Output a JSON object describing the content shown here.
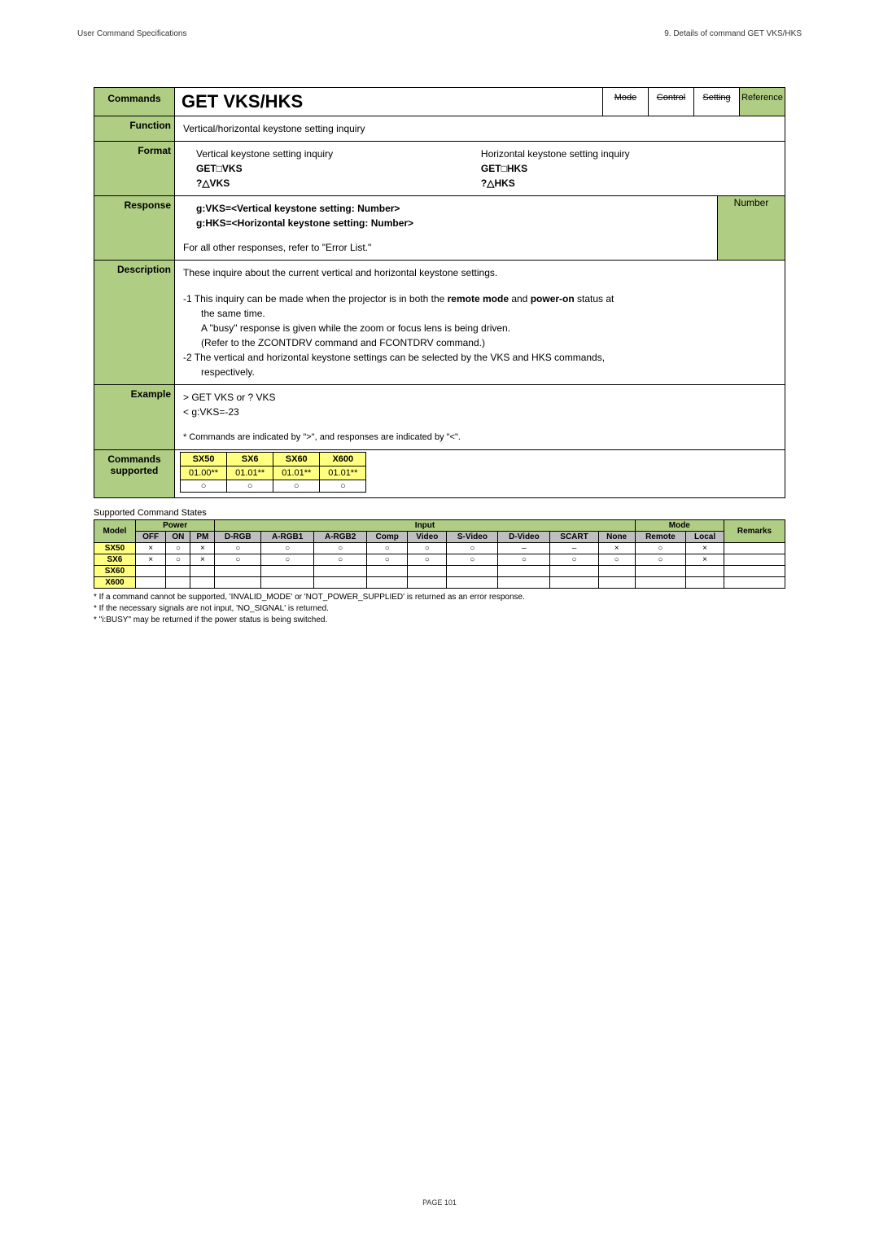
{
  "header": {
    "left": "User Command Specifications",
    "right": "9. Details of command  GET VKS/HKS"
  },
  "spec": {
    "commands_label": "Commands",
    "command_title": "GET VKS/HKS",
    "badges": {
      "mode": "Mode",
      "control": "Control",
      "setting": "Setting",
      "reference": "Reference"
    },
    "function_label": "Function",
    "function_text": "Vertical/horizontal keystone setting inquiry",
    "format_label": "Format",
    "format": {
      "vert_title": "Vertical keystone setting inquiry",
      "vert_l1": "GET□VKS",
      "vert_l2": "?△VKS",
      "horiz_title": "Horizontal keystone setting inquiry",
      "horiz_l1": "GET□HKS",
      "horiz_l2": "?△HKS"
    },
    "response_label": "Response",
    "response": {
      "l1a": "g:VKS=<Vertical keystone setting: Number>",
      "l1b": "g:HKS=<Horizontal keystone setting: Number>",
      "l2": "For all other responses, refer to \"Error List.\"",
      "number_label": "Number"
    },
    "description_label": "Description",
    "description": {
      "intro": "These inquire about the current vertical and horizontal keystone settings.",
      "n1_a": "-1  This inquiry can be made when the projector is in both the ",
      "n1_b": "remote mode",
      "n1_c": " and ",
      "n1_d": "power-on",
      "n1_e": " status at",
      "n1_f": "the same time.",
      "n1_g": "A \"busy\" response is given while the zoom or focus lens is being driven.",
      "n1_h": "(Refer to the ZCONTDRV command and FCONTDRV command.)",
      "n2": "-2  The vertical and horizontal keystone settings can be selected by the VKS and HKS commands,",
      "n2_b": "respectively."
    },
    "example_label": "Example",
    "example": {
      "l1": ">  GET VKS or ? VKS",
      "l2": "<  g:VKS=-23",
      "note": "* Commands are indicated by \">\", and responses are indicated by \"<\"."
    },
    "supported_label_a": "Commands",
    "supported_label_b": "supported",
    "supported": {
      "headers": [
        "SX50",
        "SX6",
        "SX60",
        "X600"
      ],
      "versions": [
        "01.00**",
        "01.01**",
        "01.01**",
        "01.01**"
      ],
      "marks": [
        "○",
        "○",
        "○",
        "○"
      ]
    }
  },
  "states": {
    "title": "Supported Command States",
    "top": {
      "model": "Model",
      "power": "Power",
      "input": "Input",
      "mode": "Mode",
      "remarks": "Remarks"
    },
    "sub": [
      "OFF",
      "ON",
      "PM",
      "D-RGB",
      "A-RGB1",
      "A-RGB2",
      "Comp",
      "Video",
      "S-Video",
      "D-Video",
      "SCART",
      "None",
      "Remote",
      "Local"
    ],
    "rows": [
      {
        "model": "SX50",
        "cells": [
          "×",
          "○",
          "×",
          "○",
          "○",
          "○",
          "○",
          "○",
          "○",
          "–",
          "–",
          "×",
          "○",
          "×"
        ],
        "remark": ""
      },
      {
        "model": "SX6",
        "cells": [
          "×",
          "○",
          "×",
          "○",
          "○",
          "○",
          "○",
          "○",
          "○",
          "○",
          "○",
          "○",
          "○",
          "×"
        ],
        "remark": ""
      },
      {
        "model": "SX60",
        "cells": [
          "",
          "",
          "",
          "",
          "",
          "",
          "",
          "",
          "",
          "",
          "",
          "",
          "",
          ""
        ],
        "remark": ""
      },
      {
        "model": "X600",
        "cells": [
          "",
          "",
          "",
          "",
          "",
          "",
          "",
          "",
          "",
          "",
          "",
          "",
          "",
          ""
        ],
        "remark": ""
      }
    ],
    "footnotes": [
      "* If a command cannot be supported, 'INVALID_MODE' or 'NOT_POWER_SUPPLIED' is returned as an error response.",
      "* If the necessary signals are not input, 'NO_SIGNAL' is returned.",
      "* \"i:BUSY\" may be returned if the power status is being switched."
    ]
  },
  "page_number": "PAGE 101",
  "colors": {
    "green": "#b0cd84",
    "yellow": "#ffff80",
    "gray": "#bfbfbf"
  }
}
